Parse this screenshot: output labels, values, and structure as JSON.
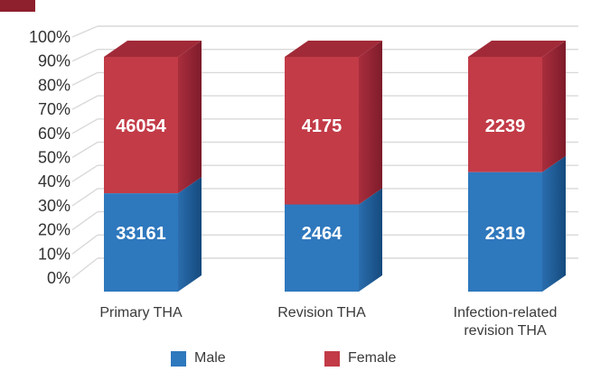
{
  "corner_mark": {
    "color": "#8E1F2D"
  },
  "chart_data": {
    "type": "bar",
    "variant": "3d-100-percent-stacked-column",
    "title": "",
    "categories": [
      "Primary THA",
      "Revision THA",
      "Infection-related revision THA"
    ],
    "series": [
      {
        "name": "Male",
        "values": [
          33161,
          2464,
          2319
        ],
        "front_color": "#2E78BD",
        "side_color_near": "#2A6DAE",
        "side_color_far": "#154A7D",
        "top_color": "#2565A5"
      },
      {
        "name": "Female",
        "values": [
          46054,
          4175,
          2239
        ],
        "front_color": "#C23B47",
        "side_color_near": "#A92E3D",
        "side_color_far": "#7E1B2A",
        "top_color": "#A12A38"
      }
    ],
    "y_ticks": [
      "100%",
      "90%",
      "80%",
      "70%",
      "60%",
      "50%",
      "40%",
      "30%",
      "20%",
      "10%",
      "0%"
    ],
    "ylim": [
      0,
      100
    ],
    "grid": true,
    "gridline_color": "#D9D9D9",
    "axis_text_color": "#333333",
    "value_labels": true,
    "value_label_color": "#FFFFFF",
    "legend_position": "bottom"
  }
}
